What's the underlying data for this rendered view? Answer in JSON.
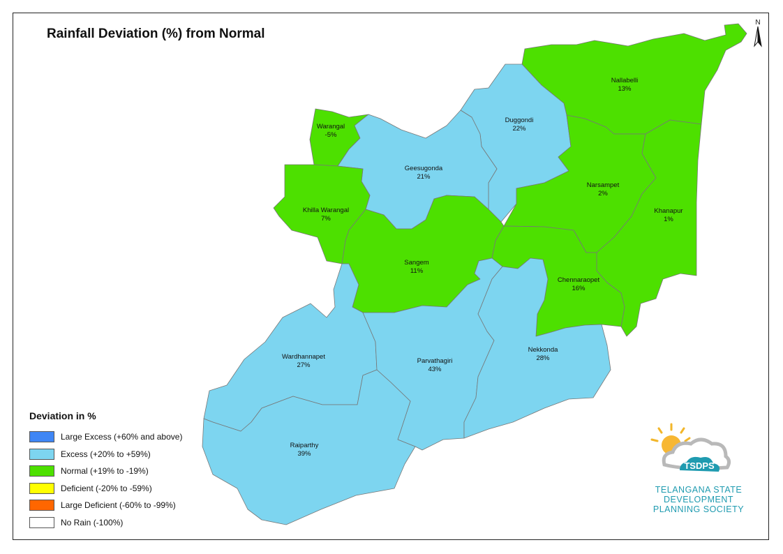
{
  "title": "Rainfall Deviation (%) from Normal",
  "north_label": "N",
  "colors": {
    "large_excess": "#3f86f5",
    "excess": "#7dd5f0",
    "normal": "#4de000",
    "deficient": "#ffff00",
    "large_deficient": "#ff6600",
    "no_rain": "#ffffff"
  },
  "legend": {
    "title": "Deviation in %",
    "items": [
      {
        "label": "Large Excess (+60% and above)",
        "color": "#3f86f5"
      },
      {
        "label": "Excess (+20% to +59%)",
        "color": "#7dd5f0"
      },
      {
        "label": "Normal (+19% to -19%)",
        "color": "#4de000"
      },
      {
        "label": "Deficient (-20% to -59%)",
        "color": "#ffff00"
      },
      {
        "label": "Large Deficient (-60% to -99%)",
        "color": "#ff6600"
      },
      {
        "label": "No Rain (-100%)",
        "color": "#ffffff"
      }
    ]
  },
  "mandals": [
    {
      "name": "Nallabelli",
      "value": "13%",
      "category": "normal"
    },
    {
      "name": "Duggondi",
      "value": "22%",
      "category": "excess"
    },
    {
      "name": "Warangal",
      "value": "-5%",
      "category": "normal"
    },
    {
      "name": "Geesugonda",
      "value": "21%",
      "category": "excess"
    },
    {
      "name": "Narsampet",
      "value": "2%",
      "category": "normal"
    },
    {
      "name": "Khilla Warangal",
      "value": "7%",
      "category": "normal"
    },
    {
      "name": "Khanapur",
      "value": "1%",
      "category": "normal"
    },
    {
      "name": "Sangem",
      "value": "11%",
      "category": "normal"
    },
    {
      "name": "Chennaraopet",
      "value": "16%",
      "category": "normal"
    },
    {
      "name": "Wardhannapet",
      "value": "27%",
      "category": "excess"
    },
    {
      "name": "Parvathagiri",
      "value": "43%",
      "category": "excess"
    },
    {
      "name": "Nekkonda",
      "value": "28%",
      "category": "excess"
    },
    {
      "name": "Raiparthy",
      "value": "39%",
      "category": "excess"
    }
  ],
  "logo": {
    "acronym": "TSDPS",
    "line1": "TELANGANA STATE",
    "line2": "DEVELOPMENT",
    "line3": "PLANNING SOCIETY"
  }
}
